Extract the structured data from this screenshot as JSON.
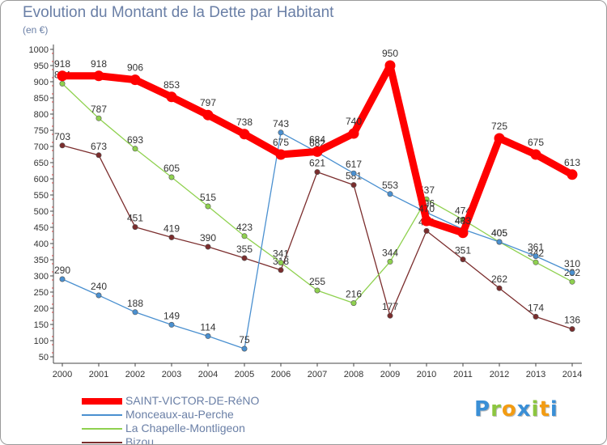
{
  "header": {
    "title": "Evolution du Montant de la Dette par Habitant",
    "subtitle": "(en €)"
  },
  "logo": {
    "text": "Proxiti",
    "letters": [
      {
        "char": "P",
        "color": "#3a8fd6"
      },
      {
        "char": "r",
        "color": "#8cc63f"
      },
      {
        "char": "o",
        "color": "#f39c12"
      },
      {
        "char": "x",
        "color": "#3a8fd6"
      },
      {
        "char": "i",
        "color": "#8cc63f"
      },
      {
        "char": "t",
        "color": "#f39c12"
      },
      {
        "char": "i",
        "color": "#3a8fd6"
      }
    ]
  },
  "chart_data": {
    "type": "line",
    "title": "Evolution du Montant de la Dette par Habitant",
    "ylabel": "(en €)",
    "xlabel": "",
    "ylim": [
      50,
      1000
    ],
    "yticks": [
      50,
      100,
      150,
      200,
      250,
      300,
      350,
      400,
      450,
      500,
      550,
      600,
      650,
      700,
      750,
      800,
      850,
      900,
      950,
      1000
    ],
    "grid": false,
    "legend_position": "bottom-left",
    "categories": [
      "2000",
      "2001",
      "2002",
      "2003",
      "2004",
      "2005",
      "2006",
      "2007",
      "2008",
      "2009",
      "2010",
      "2011",
      "2012",
      "2013",
      "2014"
    ],
    "series": [
      {
        "name": "Bizou",
        "color": "#7b2d2d",
        "values": [
          703,
          673,
          451,
          419,
          390,
          355,
          318,
          621,
          581,
          177,
          439,
          351,
          262,
          174,
          136
        ]
      },
      {
        "name": "La Chapelle-Montligeon",
        "color": "#8fd14f",
        "values": [
          894,
          787,
          693,
          605,
          515,
          423,
          341,
          255,
          216,
          344,
          537,
          474,
          405,
          342,
          282
        ]
      },
      {
        "name": "Monceaux-au-Perche",
        "color": "#4a90d0",
        "values": [
          290,
          240,
          188,
          149,
          114,
          75,
          743,
          682,
          617,
          553,
          496,
          444,
          405,
          361,
          310
        ]
      },
      {
        "name": "SAINT-VICTOR-DE-RéNO",
        "color": "#ff0000",
        "values": [
          918,
          918,
          906,
          853,
          797,
          738,
          675,
          684,
          740,
          950,
          470,
          433,
          725,
          675,
          613
        ]
      }
    ]
  }
}
